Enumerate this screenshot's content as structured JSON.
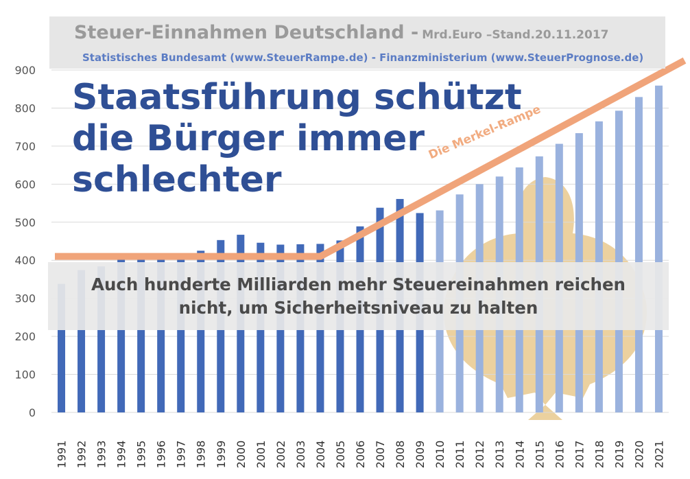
{
  "title": {
    "main": "Steuer-Einnahmen Deutschland -",
    "sub": "Mrd.Euro –Stand.20.11.2017",
    "sources": "Statistisches Bundesamt (www.SteuerRampe.de)  - Finanzministerium (www.SteuerPrognose.de)"
  },
  "headline": {
    "line1": "Staatsführung schützt",
    "line2": "die Bürger immer",
    "line3": "schlechter"
  },
  "message": {
    "line1": "Auch hunderte Milliarden mehr Steuereinahmen reichen",
    "line2": "nicht, um Sicherheitsniveau zu halten"
  },
  "ramp_label": "Die Merkel-Rampe",
  "colors": {
    "actual": "#4169b8",
    "forecast": "#9ab2de",
    "ramp": "#f0a47a",
    "gridline": "#d9d9d9",
    "emblem": "#e5c27f"
  },
  "chart_data": {
    "type": "bar",
    "categories": [
      "1991",
      "1992",
      "1993",
      "1994",
      "1995",
      "1996",
      "1997",
      "1998",
      "1999",
      "2000",
      "2001",
      "2002",
      "2003",
      "2004",
      "2005",
      "2006",
      "2007",
      "2008",
      "2009",
      "2010",
      "2011",
      "2012",
      "2013",
      "2014",
      "2015",
      "2016",
      "2017",
      "2018",
      "2019",
      "2020",
      "2021"
    ],
    "series": [
      {
        "values": [
          338,
          374,
          384,
          402,
          416,
          409,
          407,
          425,
          453,
          467,
          446,
          441,
          442,
          443,
          452,
          489,
          538,
          561,
          524,
          531,
          573,
          600,
          620,
          644,
          673,
          706,
          734,
          765,
          793,
          829,
          859
        ]
      }
    ],
    "forecast_start_category": "2010",
    "ramp_line": {
      "x": [
        "1991",
        "2004",
        "2021"
      ],
      "y": [
        410,
        410,
        925
      ]
    },
    "yticks": [
      0,
      100,
      200,
      300,
      400,
      500,
      600,
      700,
      800,
      900
    ],
    "ylim": [
      0,
      900
    ],
    "grid": true,
    "legend": "none"
  }
}
